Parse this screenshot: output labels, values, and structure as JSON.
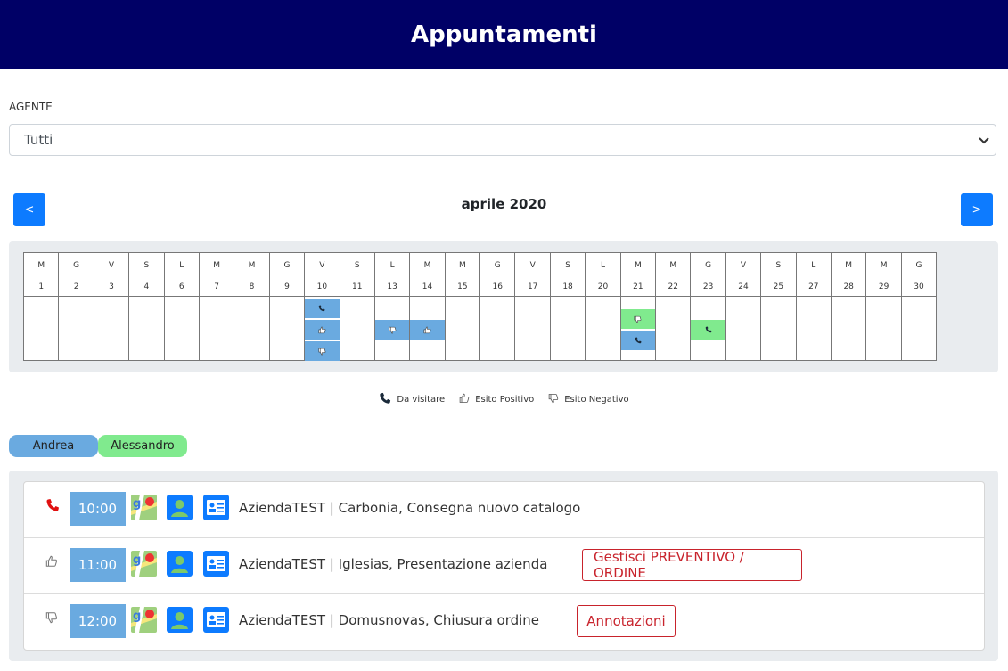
{
  "header": {
    "title": "Appuntamenti"
  },
  "agent": {
    "label": "AGENTE",
    "selected": "Tutti"
  },
  "calendar": {
    "prev_label": "<",
    "next_label": ">",
    "month": "aprile 2020",
    "days": [
      {
        "dow": "M",
        "d": "1",
        "events": []
      },
      {
        "dow": "G",
        "d": "2",
        "events": []
      },
      {
        "dow": "V",
        "d": "3",
        "events": []
      },
      {
        "dow": "S",
        "d": "4",
        "events": []
      },
      {
        "dow": "L",
        "d": "6",
        "events": []
      },
      {
        "dow": "M",
        "d": "7",
        "events": []
      },
      {
        "dow": "M",
        "d": "8",
        "events": []
      },
      {
        "dow": "G",
        "d": "9",
        "events": []
      },
      {
        "dow": "V",
        "d": "10",
        "events": [
          {
            "slot": 0,
            "color": "blue",
            "icon": "phone"
          },
          {
            "slot": 1,
            "color": "blue",
            "icon": "thumbs-up"
          },
          {
            "slot": 2,
            "color": "blue",
            "icon": "thumbs-down"
          }
        ]
      },
      {
        "dow": "S",
        "d": "11",
        "events": []
      },
      {
        "dow": "L",
        "d": "13",
        "events": [
          {
            "slot": 1,
            "color": "blue",
            "icon": "thumbs-down"
          }
        ]
      },
      {
        "dow": "M",
        "d": "14",
        "events": [
          {
            "slot": 1,
            "color": "blue",
            "icon": "thumbs-up"
          }
        ]
      },
      {
        "dow": "M",
        "d": "15",
        "events": []
      },
      {
        "dow": "G",
        "d": "16",
        "events": []
      },
      {
        "dow": "V",
        "d": "17",
        "events": []
      },
      {
        "dow": "S",
        "d": "18",
        "events": []
      },
      {
        "dow": "L",
        "d": "20",
        "events": []
      },
      {
        "dow": "M",
        "d": "21",
        "events": [
          {
            "slot": 0.5,
            "color": "green",
            "icon": "thumbs-down"
          },
          {
            "slot": 1.5,
            "color": "blue",
            "icon": "phone"
          }
        ]
      },
      {
        "dow": "M",
        "d": "22",
        "events": []
      },
      {
        "dow": "G",
        "d": "23",
        "events": [
          {
            "slot": 1,
            "color": "green",
            "icon": "phone"
          }
        ]
      },
      {
        "dow": "V",
        "d": "24",
        "events": []
      },
      {
        "dow": "S",
        "d": "25",
        "events": []
      },
      {
        "dow": "L",
        "d": "27",
        "events": []
      },
      {
        "dow": "M",
        "d": "28",
        "events": []
      },
      {
        "dow": "M",
        "d": "29",
        "events": []
      },
      {
        "dow": "G",
        "d": "30",
        "events": []
      }
    ]
  },
  "legend": {
    "to_visit": "Da visitare",
    "positive": "Esito Positivo",
    "negative": "Esito Negativo"
  },
  "agents": [
    {
      "name": "Andrea",
      "color": "#6aaae0"
    },
    {
      "name": "Alessandro",
      "color": "#80ea8e"
    }
  ],
  "appointments": [
    {
      "time": "10:00",
      "status": "phone",
      "text": "AziendaTEST | Carbonia, Consegna nuovo catalogo",
      "action": ""
    },
    {
      "time": "11:00",
      "status": "thumbs-up",
      "text": "AziendaTEST | Iglesias, Presentazione azienda",
      "action": "Gestisci PREVENTIVO / ORDINE"
    },
    {
      "time": "12:00",
      "status": "thumbs-down",
      "text": "AziendaTEST | Domusnovas, Chiusura ordine",
      "action": "Annotazioni"
    }
  ],
  "colors": {
    "header": "#000066",
    "primary": "#0d7bff",
    "event_blue": "#6aaae0",
    "event_green": "#80ea8e",
    "danger": "#c8232c"
  }
}
